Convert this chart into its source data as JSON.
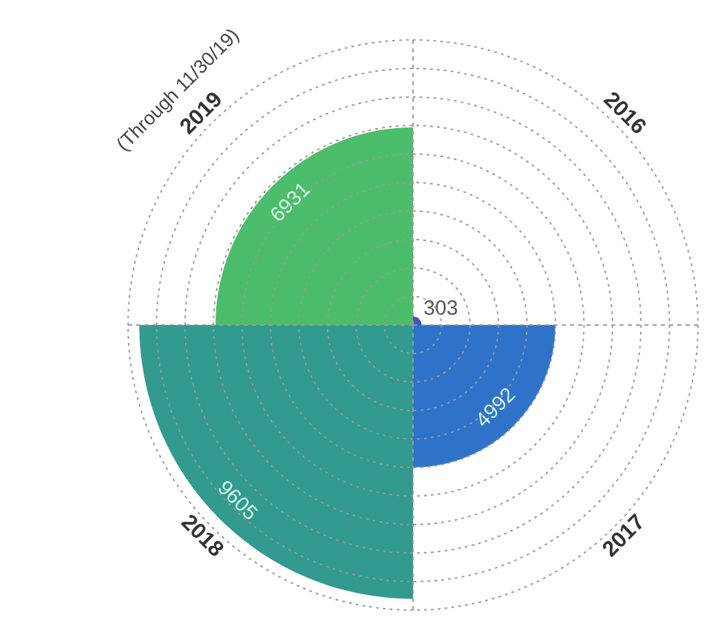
{
  "chart_data": {
    "type": "other",
    "categories": [
      "2016",
      "2017",
      "2018",
      "2019"
    ],
    "values": [
      303,
      4992,
      9605,
      6931
    ],
    "colors": [
      "#3a5bb5",
      "#2f72c9",
      "#329a8e",
      "#4cbd6a"
    ],
    "annotations": [
      "(Through 11/30/19)"
    ],
    "data_labels": true,
    "legend": false
  }
}
